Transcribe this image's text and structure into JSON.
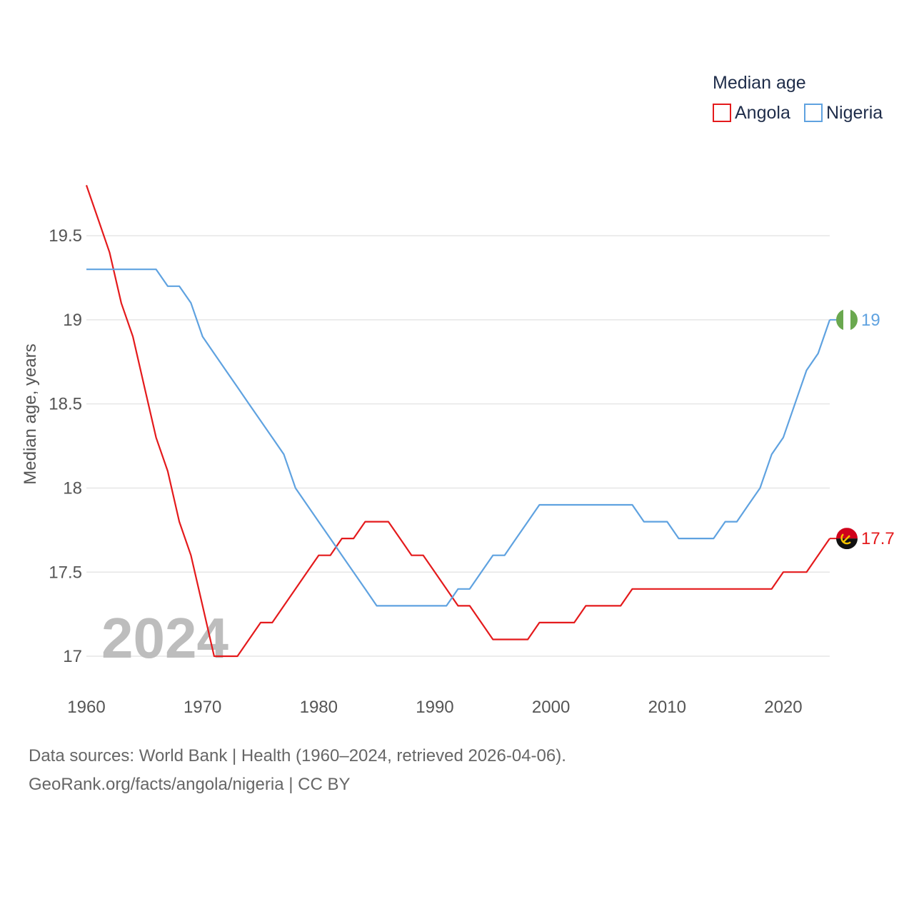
{
  "chart_data": {
    "type": "line",
    "legend_title": "Median age",
    "ylabel": "Median age, years",
    "xlabel": "",
    "watermark_year": "2024",
    "ylim": [
      16.72,
      19.84
    ],
    "xlim": [
      1960,
      2024
    ],
    "yticks": [
      17,
      17.5,
      18,
      18.5,
      19,
      19.5
    ],
    "ytick_labels": [
      "17",
      "17.5",
      "18",
      "18.5",
      "19",
      "19.5"
    ],
    "xticks": [
      1960,
      1970,
      1980,
      1990,
      2000,
      2010,
      2020
    ],
    "xtick_labels": [
      "1960",
      "1970",
      "1980",
      "1990",
      "2000",
      "2010",
      "2020"
    ],
    "legend_position": "top-right",
    "grid": true,
    "series": [
      {
        "name": "Angola",
        "color": "#e41a1c",
        "end_label": "17.7",
        "flag": "angola-flag",
        "x": [
          1960,
          1961,
          1962,
          1963,
          1964,
          1965,
          1966,
          1967,
          1968,
          1969,
          1970,
          1971,
          1972,
          1973,
          1974,
          1975,
          1976,
          1977,
          1978,
          1979,
          1980,
          1981,
          1982,
          1983,
          1984,
          1985,
          1986,
          1987,
          1988,
          1989,
          1990,
          1991,
          1992,
          1993,
          1994,
          1995,
          1996,
          1997,
          1998,
          1999,
          2000,
          2001,
          2002,
          2003,
          2004,
          2005,
          2006,
          2007,
          2008,
          2009,
          2010,
          2011,
          2012,
          2013,
          2014,
          2015,
          2016,
          2017,
          2018,
          2019,
          2020,
          2021,
          2022,
          2023,
          2024
        ],
        "values": [
          19.8,
          19.6,
          19.4,
          19.1,
          18.9,
          18.6,
          18.3,
          18.1,
          17.8,
          17.6,
          17.3,
          17.0,
          17.0,
          17.0,
          17.1,
          17.2,
          17.2,
          17.3,
          17.4,
          17.5,
          17.6,
          17.6,
          17.7,
          17.7,
          17.8,
          17.8,
          17.8,
          17.7,
          17.6,
          17.6,
          17.5,
          17.4,
          17.3,
          17.3,
          17.2,
          17.1,
          17.1,
          17.1,
          17.1,
          17.2,
          17.2,
          17.2,
          17.2,
          17.3,
          17.3,
          17.3,
          17.3,
          17.4,
          17.4,
          17.4,
          17.4,
          17.4,
          17.4,
          17.4,
          17.4,
          17.4,
          17.4,
          17.4,
          17.4,
          17.4,
          17.5,
          17.5,
          17.5,
          17.6,
          17.7
        ]
      },
      {
        "name": "Nigeria",
        "color": "#5fa2e0",
        "end_label": "19",
        "flag": "nigeria-flag",
        "x": [
          1960,
          1961,
          1962,
          1963,
          1964,
          1965,
          1966,
          1967,
          1968,
          1969,
          1970,
          1971,
          1972,
          1973,
          1974,
          1975,
          1976,
          1977,
          1978,
          1979,
          1980,
          1981,
          1982,
          1983,
          1984,
          1985,
          1986,
          1987,
          1988,
          1989,
          1990,
          1991,
          1992,
          1993,
          1994,
          1995,
          1996,
          1997,
          1998,
          1999,
          2000,
          2001,
          2002,
          2003,
          2004,
          2005,
          2006,
          2007,
          2008,
          2009,
          2010,
          2011,
          2012,
          2013,
          2014,
          2015,
          2016,
          2017,
          2018,
          2019,
          2020,
          2021,
          2022,
          2023,
          2024
        ],
        "values": [
          19.3,
          19.3,
          19.3,
          19.3,
          19.3,
          19.3,
          19.3,
          19.2,
          19.2,
          19.1,
          18.9,
          18.8,
          18.7,
          18.6,
          18.5,
          18.4,
          18.3,
          18.2,
          18.0,
          17.9,
          17.8,
          17.7,
          17.6,
          17.5,
          17.4,
          17.3,
          17.3,
          17.3,
          17.3,
          17.3,
          17.3,
          17.3,
          17.4,
          17.4,
          17.5,
          17.6,
          17.6,
          17.7,
          17.8,
          17.9,
          17.9,
          17.9,
          17.9,
          17.9,
          17.9,
          17.9,
          17.9,
          17.9,
          17.8,
          17.8,
          17.8,
          17.7,
          17.7,
          17.7,
          17.7,
          17.8,
          17.8,
          17.9,
          18.0,
          18.2,
          18.3,
          18.5,
          18.7,
          18.8,
          19.0
        ]
      }
    ]
  },
  "footer": {
    "sources": "Data sources: World Bank | Health (1960–2024, retrieved 2026-04-06).",
    "attribution": "GeoRank.org/facts/angola/nigeria | CC BY"
  }
}
